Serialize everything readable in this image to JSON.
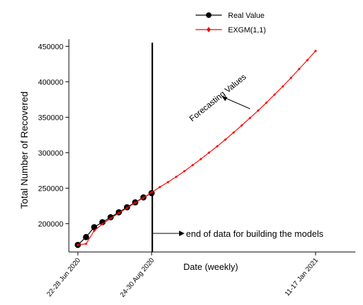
{
  "chart_data": {
    "type": "line",
    "title": "",
    "xlabel": "Date (weekly)",
    "ylabel": "Total  Number of  Recovered",
    "x_tick_labels": [
      "22-28 Jun 2020",
      "24-30 Aug 2020",
      "11-17 Jan 2021"
    ],
    "x_tick_weeks": [
      0,
      9,
      29
    ],
    "ylim": [
      160000,
      460000
    ],
    "y_ticks": [
      200000,
      250000,
      300000,
      350000,
      400000,
      450000
    ],
    "y_tick_labels": [
      "200000",
      "250000",
      "300000",
      "350000",
      "400000",
      "450000"
    ],
    "legend": {
      "position": "top-center",
      "entries": [
        "Real Value",
        "EXGM(1,1)"
      ]
    },
    "colors": {
      "real": "#000000",
      "model": "#ff0000"
    },
    "series": [
      {
        "name": "Real Value",
        "x": [
          0,
          1,
          2,
          3,
          4,
          5,
          6,
          7,
          8,
          9
        ],
        "values": [
          170000,
          181000,
          195000,
          202000,
          209000,
          216000,
          223000,
          230000,
          237000,
          243000
        ]
      },
      {
        "name": "EXGM(1,1)",
        "x": [
          0,
          1,
          2,
          3,
          4,
          5,
          6,
          7,
          8,
          9,
          10,
          11,
          12,
          13,
          14,
          15,
          16,
          17,
          18,
          19,
          20,
          21,
          22,
          23,
          24,
          25,
          26,
          27,
          28,
          29
        ],
        "values": [
          170000,
          171500,
          190000,
          199500,
          207500,
          215000,
          222000,
          229500,
          236500,
          244000,
          251500,
          258500,
          266000,
          274000,
          282500,
          291000,
          300000,
          309000,
          318500,
          328500,
          338500,
          349000,
          359500,
          370500,
          382000,
          393500,
          405500,
          418000,
          430500,
          443500
        ]
      }
    ],
    "forecast_start_week": 9,
    "annotations": {
      "forecast": "Forecasting Values",
      "end_of_data": "end of data for building the models"
    }
  }
}
